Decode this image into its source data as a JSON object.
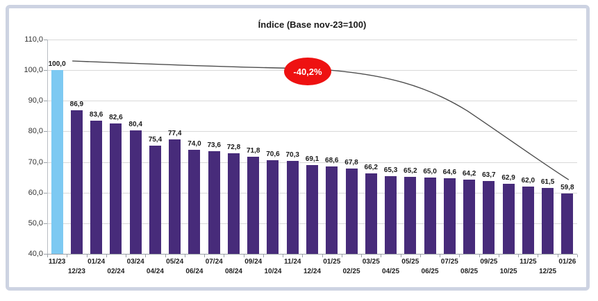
{
  "page": {
    "background": "#ffffff",
    "frame_border_color": "#cdd3e2"
  },
  "chart_data": {
    "type": "bar",
    "title": "Índice (Base nov-23=100)",
    "categories": [
      "11/23",
      "12/23",
      "01/24",
      "02/24",
      "03/24",
      "04/24",
      "05/24",
      "06/24",
      "07/24",
      "08/24",
      "09/24",
      "10/24",
      "11/24",
      "12/24",
      "01/25",
      "02/25",
      "03/25",
      "04/25",
      "05/25",
      "06/25",
      "07/25",
      "08/25",
      "09/25",
      "10/25",
      "11/25",
      "12/25",
      "01/26"
    ],
    "values": [
      100.0,
      86.9,
      83.6,
      82.6,
      80.4,
      75.4,
      77.4,
      74.0,
      73.6,
      72.8,
      71.8,
      70.6,
      70.3,
      69.1,
      68.6,
      67.8,
      66.2,
      65.3,
      65.2,
      65.0,
      64.6,
      64.2,
      63.7,
      62.9,
      62.0,
      61.5,
      59.8
    ],
    "value_labels": [
      "100,0",
      "86,9",
      "83,6",
      "82,6",
      "80,4",
      "75,4",
      "77,4",
      "74,0",
      "73,6",
      "72,8",
      "71,8",
      "70,6",
      "70,3",
      "69,1",
      "68,6",
      "67,8",
      "66,2",
      "65,3",
      "65,2",
      "65,0",
      "64,6",
      "64,2",
      "63,7",
      "62,9",
      "62,0",
      "61,5",
      "59,8"
    ],
    "ylim": [
      40,
      110
    ],
    "ytick_step": 10,
    "ytick_labels": [
      "110,0",
      "100,0",
      "90,0",
      "80,0",
      "70,0",
      "60,0",
      "50,0",
      "40,0"
    ],
    "grid": true,
    "legend": "none",
    "first_bar_color": "#7dc9f2",
    "bar_color": "#472b7a",
    "trend_line_color": "#4d4d4d",
    "annotation": {
      "label": "-40,2%",
      "fill": "#ee1111",
      "text_color": "#ffffff"
    }
  }
}
